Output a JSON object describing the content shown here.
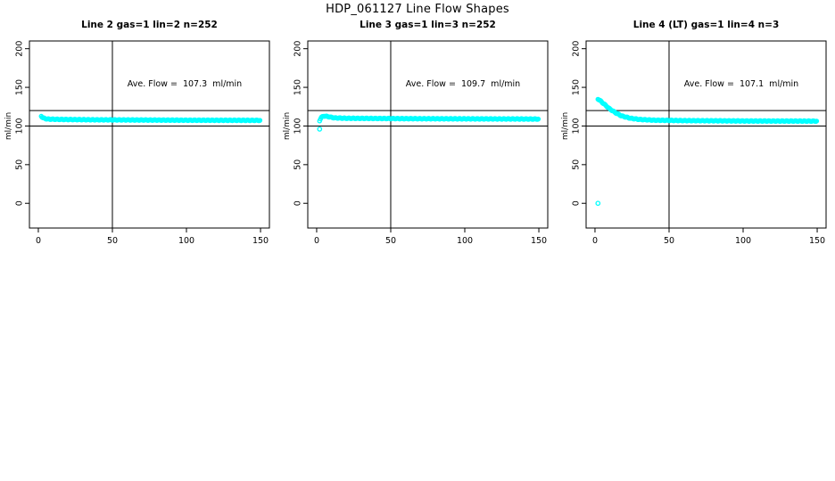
{
  "figure": {
    "title": "HDP_061127  Line Flow Shapes",
    "background_color": "#FFFFFF",
    "axis_color": "#000000"
  },
  "chart_data": [
    {
      "type": "scatter",
      "title": "Line 2 gas=1 lin=2 n=252",
      "annotation": "Ave. Flow =  107.3  ml/min",
      "ave_flow_ml_min": 107.3,
      "n_points": 252,
      "xlabel": "",
      "ylabel": "ml/min",
      "x_ticks": [
        0,
        50,
        100,
        150
      ],
      "y_ticks": [
        0,
        50,
        100,
        150,
        200
      ],
      "xlim": [
        -6,
        156
      ],
      "ylim": [
        -32,
        210
      ],
      "vline_x": 50,
      "hlines_y": [
        100,
        120
      ],
      "marker": "open-circle",
      "marker_color": "#00FFFF",
      "point_step": 0.6,
      "series_keypoints": [
        [
          2,
          113
        ],
        [
          3,
          110.5
        ],
        [
          6,
          109
        ],
        [
          15,
          108.5
        ],
        [
          40,
          108
        ],
        [
          100,
          107.5
        ],
        [
          150,
          107.3
        ]
      ],
      "outlier_points": []
    },
    {
      "type": "scatter",
      "title": "Line 3 gas=1 lin=3 n=252",
      "annotation": "Ave. Flow =  109.7  ml/min",
      "ave_flow_ml_min": 109.7,
      "n_points": 252,
      "xlabel": "",
      "ylabel": "ml/min",
      "x_ticks": [
        0,
        50,
        100,
        150
      ],
      "y_ticks": [
        0,
        50,
        100,
        150,
        200
      ],
      "xlim": [
        -6,
        156
      ],
      "ylim": [
        -32,
        210
      ],
      "vline_x": 50,
      "hlines_y": [
        100,
        120
      ],
      "marker": "open-circle",
      "marker_color": "#00FFFF",
      "point_step": 0.6,
      "series_keypoints": [
        [
          2,
          107
        ],
        [
          3,
          111
        ],
        [
          5,
          113
        ],
        [
          8,
          112
        ],
        [
          12,
          110.5
        ],
        [
          20,
          110
        ],
        [
          60,
          109.5
        ],
        [
          150,
          109
        ]
      ],
      "outlier_points": [
        [
          2,
          96
        ]
      ]
    },
    {
      "type": "scatter",
      "title": "Line 4 (LT) gas=1 lin=4 n=3",
      "annotation": "Ave. Flow =  107.1  ml/min",
      "ave_flow_ml_min": 107.1,
      "n_points": 3,
      "xlabel": "",
      "ylabel": "ml/min",
      "x_ticks": [
        0,
        50,
        100,
        150
      ],
      "y_ticks": [
        0,
        50,
        100,
        150,
        200
      ],
      "xlim": [
        -6,
        156
      ],
      "ylim": [
        -32,
        210
      ],
      "vline_x": 50,
      "hlines_y": [
        100,
        120
      ],
      "marker": "open-circle",
      "marker_color": "#00FFFF",
      "point_step": 0.6,
      "series_keypoints": [
        [
          2,
          135
        ],
        [
          4,
          132
        ],
        [
          7,
          127
        ],
        [
          10,
          122
        ],
        [
          14,
          117
        ],
        [
          18,
          113
        ],
        [
          24,
          110
        ],
        [
          30,
          108.5
        ],
        [
          40,
          107.5
        ],
        [
          60,
          107
        ],
        [
          100,
          106.5
        ],
        [
          150,
          106.3
        ]
      ],
      "outlier_points": [
        [
          2,
          0
        ]
      ]
    }
  ]
}
